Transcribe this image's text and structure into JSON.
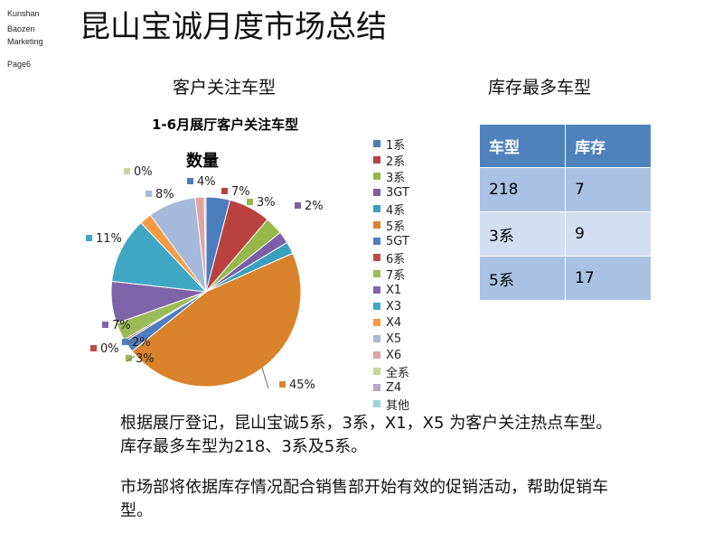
{
  "brand": {
    "line1": "Kunshan",
    "line2": "Baozen",
    "line3": "Marketing",
    "page": "Page6"
  },
  "title": "昆山宝诚月度市场总结",
  "left_section_title": "客户关注车型",
  "right_section_title": "库存最多车型",
  "chart_data": {
    "type": "pie",
    "title": "1-6月展厅客户关注车型",
    "subtitle": "数量",
    "series": [
      {
        "name": "1系",
        "label": "4%",
        "value": 4,
        "color": "#4a7dbd"
      },
      {
        "name": "2系",
        "label": "7%",
        "value": 7,
        "color": "#b94240"
      },
      {
        "name": "3系",
        "label": "3%",
        "value": 3,
        "color": "#95b849"
      },
      {
        "name": "3GT",
        "label": "2%",
        "value": 2,
        "color": "#7b5ea7"
      },
      {
        "name": "4系",
        "label": "",
        "value": 2,
        "color": "#3a9fbf"
      },
      {
        "name": "5系",
        "label": "45%",
        "value": 45,
        "color": "#d9822b"
      },
      {
        "name": "5GT",
        "label": "2%",
        "value": 2,
        "color": "#4f7ec0"
      },
      {
        "name": "6系",
        "label": "0%",
        "value": 0.3,
        "color": "#bd4a47"
      },
      {
        "name": "7系",
        "label": "3%",
        "value": 3,
        "color": "#9bbb59"
      },
      {
        "name": "X1",
        "label": "7%",
        "value": 7,
        "color": "#7f63a8"
      },
      {
        "name": "X3",
        "label": "11%",
        "value": 11,
        "color": "#3fa7c4"
      },
      {
        "name": "X4",
        "label": "",
        "value": 2,
        "color": "#f39a43"
      },
      {
        "name": "X5",
        "label": "8%",
        "value": 8,
        "color": "#a5b9da"
      },
      {
        "name": "X6",
        "label": "",
        "value": 1.5,
        "color": "#e0a3a3"
      },
      {
        "name": "全系",
        "label": "0%",
        "value": 0.3,
        "color": "#c4d79b"
      },
      {
        "name": "Z4",
        "label": "",
        "value": 0,
        "color": "#b5a6cf"
      },
      {
        "name": "其他",
        "label": "",
        "value": 0,
        "color": "#9dd1e3"
      }
    ]
  },
  "stock_table": {
    "headers": [
      "车型",
      "库存"
    ],
    "rows": [
      [
        "218",
        "7"
      ],
      [
        "3系",
        "9"
      ],
      [
        "5系",
        "17"
      ]
    ]
  },
  "paragraph1": "根据展厅登记，昆山宝诚5系，3系，X1，X5 为客户关注热点车型。库存最多车型为218、3系及5系。",
  "paragraph2": "市场部将依据库存情况配合销售部开始有效的促销活动，帮助促销车型。"
}
